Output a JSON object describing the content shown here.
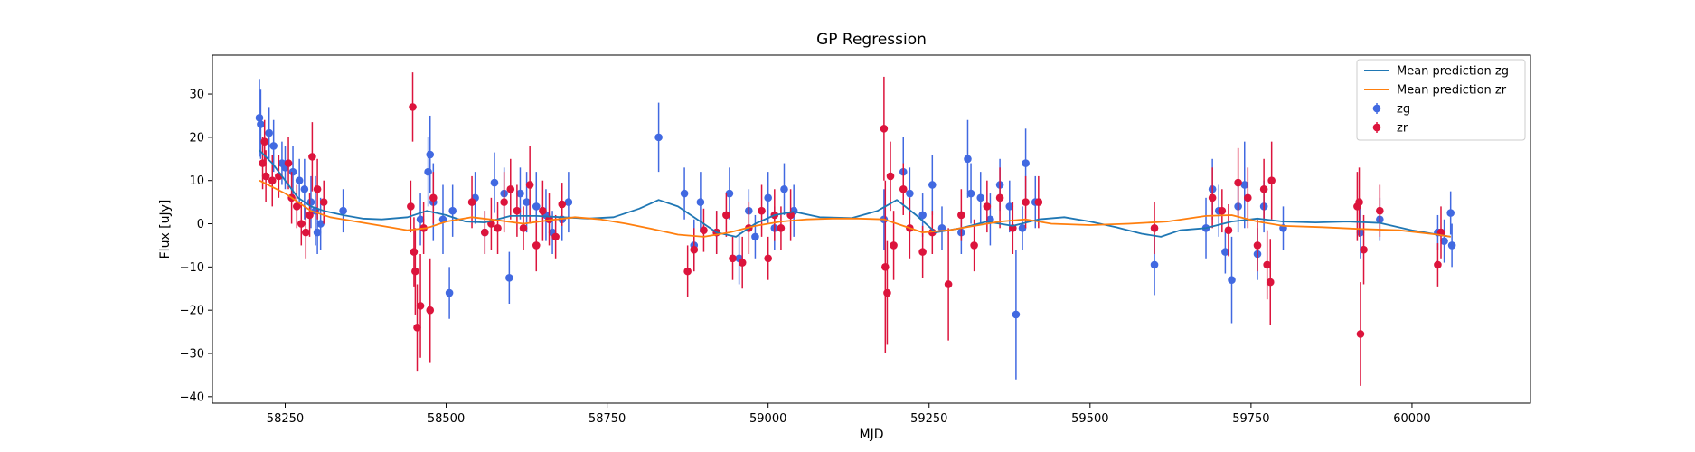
{
  "chart_data": {
    "type": "scatter",
    "title": "GP Regression",
    "xlabel": "MJD",
    "ylabel": "Flux [uJy]",
    "xlim": [
      58137,
      60184
    ],
    "ylim": [
      -41.5,
      39.0
    ],
    "xticks": [
      58250,
      58500,
      58750,
      59000,
      59250,
      59500,
      59750,
      60000
    ],
    "yticks": [
      -40,
      -30,
      -20,
      -10,
      0,
      10,
      20,
      30
    ],
    "grid": false,
    "legend_position": "top-right",
    "colors": {
      "zg_points": "#4169e1",
      "zr_points": "#dc143c",
      "zg_line": "#1f77b4",
      "zr_line": "#ff7f0e"
    },
    "legend": [
      {
        "label": "Mean prediction zg",
        "kind": "line",
        "color": "#1f77b4"
      },
      {
        "label": "Mean prediction zr",
        "kind": "line",
        "color": "#ff7f0e"
      },
      {
        "label": "zg",
        "kind": "errorbar",
        "color": "#4169e1"
      },
      {
        "label": "zr",
        "kind": "errorbar",
        "color": "#dc143c"
      }
    ],
    "series": [
      {
        "name": "Mean prediction zg",
        "kind": "line",
        "color": "#1f77b4",
        "x": [
          58210,
          58230,
          58250,
          58270,
          58290,
          58310,
          58340,
          58370,
          58400,
          58440,
          58470,
          58500,
          58530,
          58560,
          58600,
          58640,
          58680,
          58720,
          58760,
          58800,
          58830,
          58860,
          58890,
          58920,
          58950,
          58980,
          59010,
          59040,
          59080,
          59130,
          59170,
          59200,
          59230,
          59260,
          59300,
          59340,
          59380,
          59420,
          59460,
          59500,
          59540,
          59580,
          59610,
          59640,
          59680,
          59720,
          59760,
          59800,
          59850,
          59900,
          59950,
          60000,
          60040,
          60060
        ],
        "y": [
          17,
          14,
          10,
          6,
          4,
          3,
          2,
          1.2,
          1,
          1.5,
          3,
          2,
          0.5,
          0.3,
          1.8,
          1.8,
          1.5,
          1.2,
          1.5,
          3.5,
          5.5,
          4,
          1,
          -2,
          -3,
          0,
          2,
          2.8,
          1.5,
          1.3,
          3,
          5.5,
          2,
          -2,
          -1,
          0.5,
          -0.5,
          1,
          1.5,
          0.5,
          -0.8,
          -2.3,
          -3,
          -1.5,
          -1,
          0.5,
          1.2,
          0.5,
          0.3,
          0.5,
          0.2,
          -1.5,
          -2.5,
          -3
        ]
      },
      {
        "name": "Mean prediction zr",
        "kind": "line",
        "color": "#ff7f0e",
        "x": [
          58210,
          58250,
          58290,
          58320,
          58360,
          58400,
          58440,
          58470,
          58500,
          58540,
          58580,
          58620,
          58660,
          58700,
          58740,
          58780,
          58820,
          58860,
          58900,
          58940,
          58980,
          59020,
          59060,
          59100,
          59140,
          59180,
          59210,
          59240,
          59280,
          59320,
          59360,
          59400,
          59440,
          59500,
          59560,
          59620,
          59680,
          59720,
          59760,
          59800,
          59860,
          59920,
          59980,
          60040,
          60060
        ],
        "y": [
          10,
          7,
          3,
          1.5,
          0.5,
          -0.5,
          -1.5,
          -1,
          0.5,
          1.5,
          0.8,
          0,
          0.8,
          1.5,
          1,
          0,
          -1.2,
          -2.5,
          -3,
          -2,
          -0.5,
          0.5,
          1,
          1.2,
          1.2,
          1,
          -0.5,
          -2,
          -1.5,
          -0.5,
          0.5,
          1,
          0,
          -0.3,
          0,
          0.5,
          1.8,
          2,
          0.5,
          -0.5,
          -0.8,
          -1.2,
          -1.5,
          -2.5,
          -3
        ]
      },
      {
        "name": "zg",
        "kind": "errorbar",
        "color": "#4169e1",
        "points": [
          [
            58210,
            24.5,
            9
          ],
          [
            58212,
            23,
            8
          ],
          [
            58225,
            21,
            6
          ],
          [
            58232,
            18,
            6
          ],
          [
            58245,
            14,
            5
          ],
          [
            58250,
            13,
            5
          ],
          [
            58262,
            12,
            6
          ],
          [
            58272,
            10,
            5
          ],
          [
            58280,
            8,
            7
          ],
          [
            58290,
            5,
            6
          ],
          [
            58297,
            3,
            8
          ],
          [
            58305,
            0,
            6
          ],
          [
            58300,
            -2,
            5
          ],
          [
            58340,
            3,
            5
          ],
          [
            58460,
            1,
            6
          ],
          [
            58472,
            12,
            8
          ],
          [
            58475,
            16,
            9
          ],
          [
            58480,
            5,
            9
          ],
          [
            58495,
            1,
            8
          ],
          [
            58505,
            -16,
            6
          ],
          [
            58510,
            3,
            6
          ],
          [
            58545,
            6,
            6
          ],
          [
            58560,
            -2,
            5
          ],
          [
            58575,
            9.5,
            7
          ],
          [
            58590,
            7,
            6
          ],
          [
            58598,
            -12.5,
            6
          ],
          [
            58615,
            7,
            6
          ],
          [
            58625,
            5,
            7
          ],
          [
            58640,
            4,
            8
          ],
          [
            58655,
            2,
            6
          ],
          [
            58665,
            -2,
            5
          ],
          [
            58680,
            1,
            5
          ],
          [
            58690,
            5,
            7
          ],
          [
            58830,
            20,
            8
          ],
          [
            58870,
            7,
            6
          ],
          [
            58885,
            -5,
            6
          ],
          [
            58895,
            5,
            7
          ],
          [
            58920,
            -2,
            5
          ],
          [
            58940,
            7,
            6
          ],
          [
            58955,
            -8,
            6
          ],
          [
            58970,
            3,
            5
          ],
          [
            58980,
            -3,
            5
          ],
          [
            59000,
            6,
            6
          ],
          [
            59010,
            -1,
            5
          ],
          [
            59025,
            8,
            6
          ],
          [
            59040,
            3,
            6
          ],
          [
            59180,
            1,
            7
          ],
          [
            59210,
            12,
            8
          ],
          [
            59220,
            7,
            6
          ],
          [
            59240,
            2,
            5
          ],
          [
            59255,
            9,
            7
          ],
          [
            59270,
            -1,
            5
          ],
          [
            59300,
            -2,
            5
          ],
          [
            59310,
            15,
            9
          ],
          [
            59315,
            7,
            7
          ],
          [
            59330,
            6,
            6
          ],
          [
            59345,
            1,
            6
          ],
          [
            59360,
            9,
            6
          ],
          [
            59375,
            4,
            6
          ],
          [
            59385,
            -21,
            15
          ],
          [
            59395,
            -1,
            5
          ],
          [
            59400,
            14,
            8
          ],
          [
            59415,
            5,
            6
          ],
          [
            59600,
            -9.5,
            7
          ],
          [
            59680,
            -1,
            7
          ],
          [
            59690,
            8,
            7
          ],
          [
            59700,
            3,
            6
          ],
          [
            59710,
            -6.5,
            5
          ],
          [
            59720,
            -13,
            10
          ],
          [
            59730,
            4,
            6
          ],
          [
            59740,
            9,
            10
          ],
          [
            59760,
            -7,
            6
          ],
          [
            59770,
            4,
            6
          ],
          [
            59800,
            -1,
            5
          ],
          [
            59920,
            -2,
            6
          ],
          [
            59950,
            1,
            5
          ],
          [
            60040,
            -2,
            4
          ],
          [
            60050,
            -4,
            5
          ],
          [
            60060,
            2.5,
            5
          ],
          [
            60062,
            -5,
            5
          ]
        ]
      },
      {
        "name": "zr",
        "kind": "errorbar",
        "color": "#dc143c",
        "points": [
          [
            58215,
            14,
            6
          ],
          [
            58218,
            19,
            5
          ],
          [
            58220,
            11,
            6
          ],
          [
            58230,
            10,
            6
          ],
          [
            58240,
            11,
            5
          ],
          [
            58255,
            14,
            6
          ],
          [
            58260,
            6,
            6
          ],
          [
            58268,
            4,
            5
          ],
          [
            58275,
            0,
            5
          ],
          [
            58282,
            -2,
            6
          ],
          [
            58288,
            2,
            5
          ],
          [
            58292,
            15.5,
            8
          ],
          [
            58300,
            8,
            7
          ],
          [
            58310,
            5,
            5
          ],
          [
            58445,
            4,
            6
          ],
          [
            58448,
            27,
            8
          ],
          [
            58450,
            -6.5,
            8
          ],
          [
            58452,
            -11,
            10
          ],
          [
            58455,
            -24,
            10
          ],
          [
            58460,
            -19,
            12
          ],
          [
            58465,
            -1,
            6
          ],
          [
            58475,
            -20,
            12
          ],
          [
            58480,
            6,
            6
          ],
          [
            58540,
            5,
            6
          ],
          [
            58560,
            -2,
            5
          ],
          [
            58570,
            0,
            6
          ],
          [
            58580,
            -1,
            6
          ],
          [
            58590,
            5,
            7
          ],
          [
            58600,
            8,
            7
          ],
          [
            58610,
            3,
            6
          ],
          [
            58620,
            -1,
            5
          ],
          [
            58630,
            9,
            9
          ],
          [
            58640,
            -5,
            6
          ],
          [
            58650,
            3,
            7
          ],
          [
            58660,
            1,
            6
          ],
          [
            58670,
            -3,
            5
          ],
          [
            58680,
            4.5,
            5
          ],
          [
            58875,
            -11,
            6
          ],
          [
            58885,
            -6,
            5
          ],
          [
            58900,
            -1.5,
            5
          ],
          [
            58920,
            -2,
            5
          ],
          [
            58935,
            2,
            5
          ],
          [
            58945,
            -8,
            5
          ],
          [
            58960,
            -9,
            6
          ],
          [
            58970,
            -1,
            6
          ],
          [
            58990,
            3,
            6
          ],
          [
            59000,
            -8,
            5
          ],
          [
            59010,
            2,
            6
          ],
          [
            59020,
            -1,
            5
          ],
          [
            59035,
            2,
            6
          ],
          [
            59180,
            22,
            12
          ],
          [
            59182,
            -10,
            20
          ],
          [
            59185,
            -16,
            12
          ],
          [
            59190,
            11,
            8
          ],
          [
            59195,
            -5,
            8
          ],
          [
            59210,
            8,
            6
          ],
          [
            59220,
            -1,
            7
          ],
          [
            59240,
            -6.5,
            6
          ],
          [
            59255,
            -2,
            5
          ],
          [
            59280,
            -14,
            13
          ],
          [
            59300,
            2,
            6
          ],
          [
            59320,
            -5,
            6
          ],
          [
            59340,
            4,
            6
          ],
          [
            59360,
            6,
            7
          ],
          [
            59380,
            -1,
            6
          ],
          [
            59400,
            5,
            6
          ],
          [
            59420,
            5,
            6
          ],
          [
            59600,
            -1,
            6
          ],
          [
            59690,
            6,
            7
          ],
          [
            59705,
            3,
            5
          ],
          [
            59715,
            -1.5,
            6
          ],
          [
            59730,
            9.5,
            8
          ],
          [
            59745,
            6,
            7
          ],
          [
            59760,
            -5,
            6
          ],
          [
            59770,
            8,
            7
          ],
          [
            59775,
            -9.5,
            8
          ],
          [
            59780,
            -13.5,
            10
          ],
          [
            59782,
            10,
            9
          ],
          [
            59915,
            4,
            8
          ],
          [
            59918,
            5,
            8
          ],
          [
            59920,
            -25.5,
            12
          ],
          [
            59925,
            -6,
            8
          ],
          [
            59950,
            3,
            6
          ],
          [
            60040,
            -9.5,
            5
          ],
          [
            60045,
            -2,
            6
          ]
        ]
      }
    ]
  }
}
